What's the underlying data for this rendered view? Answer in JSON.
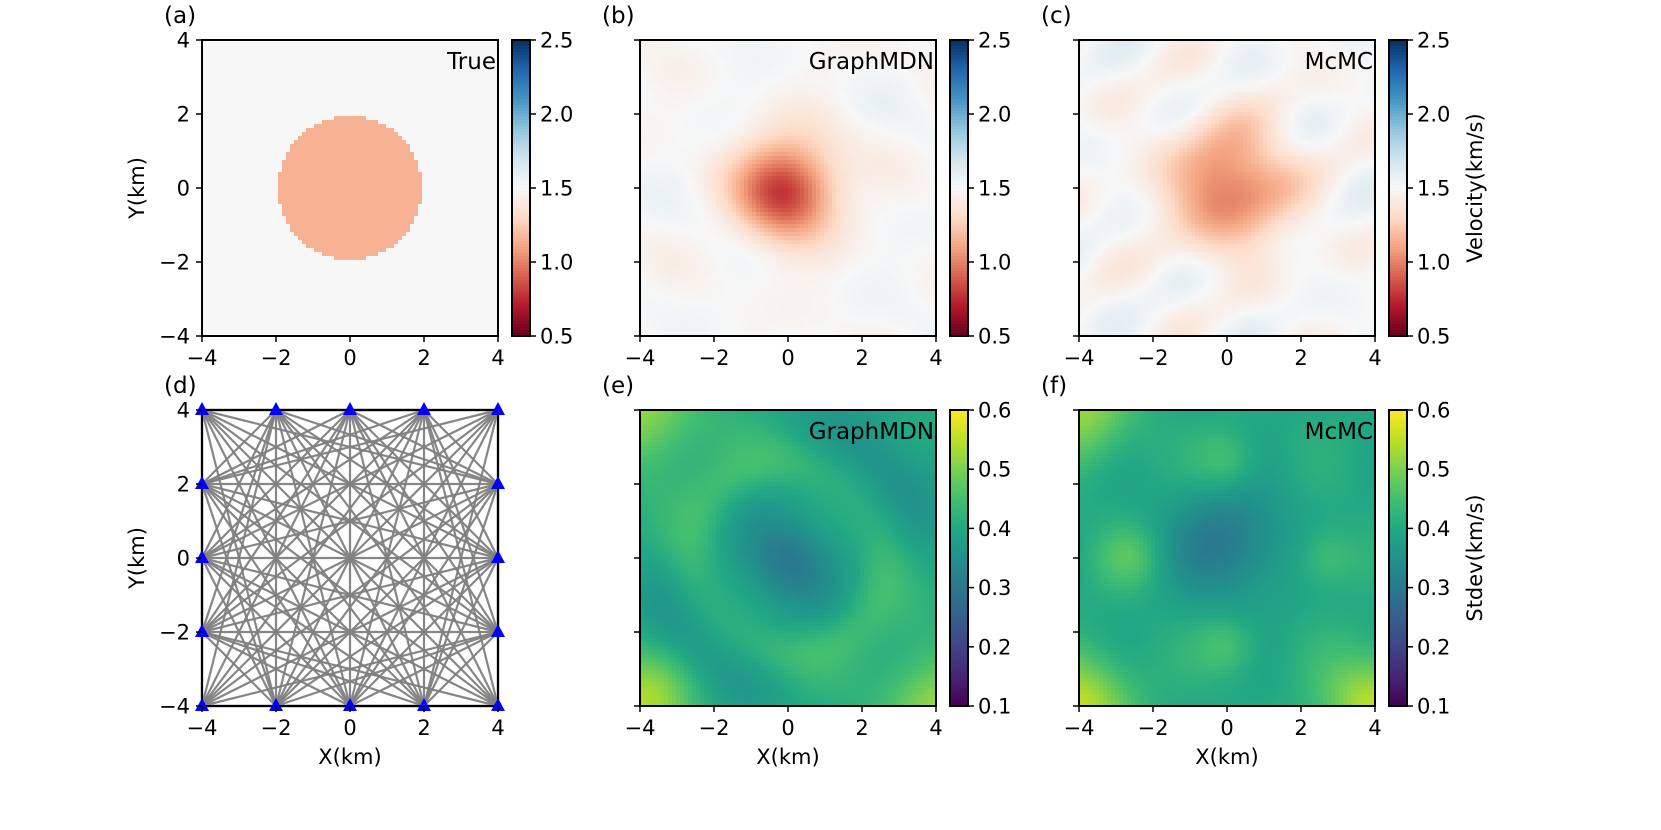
{
  "chart_data": [
    {
      "type": "heatmap",
      "panel": "(a)",
      "title": "True",
      "field": "true-disk",
      "xlim": [
        -4,
        4
      ],
      "ylim": [
        -4,
        4
      ],
      "xticks": [
        "−4",
        "−2",
        "0",
        "2",
        "4"
      ],
      "yticks": [
        "−4",
        "−2",
        "0",
        "2",
        "4"
      ],
      "ylabel": "Y(km)",
      "xlabel": "",
      "colorbar": {
        "ticks": [
          "0.5",
          "1.0",
          "1.5",
          "2.0",
          "2.5"
        ],
        "range": [
          0.5,
          2.5
        ],
        "cmap": "RdBu",
        "label": ""
      }
    },
    {
      "type": "heatmap",
      "panel": "(b)",
      "title": "GraphMDN",
      "field": "mean-graph",
      "xlim": [
        -4,
        4
      ],
      "ylim": [
        -4,
        4
      ],
      "xticks": [
        "−4",
        "−2",
        "0",
        "2",
        "4"
      ],
      "yticks": [],
      "ylabel": "",
      "xlabel": "",
      "colorbar": {
        "ticks": [
          "0.5",
          "1.0",
          "1.5",
          "2.0",
          "2.5"
        ],
        "range": [
          0.5,
          2.5
        ],
        "cmap": "RdBu",
        "label": ""
      }
    },
    {
      "type": "heatmap",
      "panel": "(c)",
      "title": "McMC",
      "field": "mean-mcmc",
      "xlim": [
        -4,
        4
      ],
      "ylim": [
        -4,
        4
      ],
      "xticks": [
        "−4",
        "−2",
        "0",
        "2",
        "4"
      ],
      "yticks": [],
      "ylabel": "",
      "xlabel": "",
      "colorbar": {
        "ticks": [
          "0.5",
          "1.0",
          "1.5",
          "2.0",
          "2.5"
        ],
        "range": [
          0.5,
          2.5
        ],
        "cmap": "RdBu",
        "label": "Velocity(km/s)"
      }
    },
    {
      "type": "scatter",
      "panel": "(d)",
      "title": "",
      "xlim": [
        -4,
        4
      ],
      "ylim": [
        -4,
        4
      ],
      "xticks": [
        "−4",
        "−2",
        "0",
        "2",
        "4"
      ],
      "yticks": [
        "−4",
        "−2",
        "0",
        "2",
        "4"
      ],
      "ylabel": "Y(km)",
      "xlabel": "X(km)",
      "stations": [
        [
          -4,
          4
        ],
        [
          -2,
          4
        ],
        [
          0,
          4
        ],
        [
          2,
          4
        ],
        [
          4,
          4
        ],
        [
          -4,
          2
        ],
        [
          4,
          2
        ],
        [
          -4,
          0
        ],
        [
          4,
          0
        ],
        [
          -4,
          -2
        ],
        [
          4,
          -2
        ],
        [
          -4,
          -4
        ],
        [
          -2,
          -4
        ],
        [
          0,
          -4
        ],
        [
          2,
          -4
        ],
        [
          4,
          -4
        ]
      ],
      "ray_color": "#808080",
      "station_color": "#0000ff"
    },
    {
      "type": "heatmap",
      "panel": "(e)",
      "title": "GraphMDN",
      "field": "std-graph",
      "xlim": [
        -4,
        4
      ],
      "ylim": [
        -4,
        4
      ],
      "xticks": [
        "−4",
        "−2",
        "0",
        "2",
        "4"
      ],
      "yticks": [],
      "ylabel": "",
      "xlabel": "X(km)",
      "colorbar": {
        "ticks": [
          "0.1",
          "0.2",
          "0.3",
          "0.4",
          "0.5",
          "0.6"
        ],
        "range": [
          0.1,
          0.6
        ],
        "cmap": "viridis",
        "label": ""
      }
    },
    {
      "type": "heatmap",
      "panel": "(f)",
      "title": "McMC",
      "field": "std-mcmc",
      "xlim": [
        -4,
        4
      ],
      "ylim": [
        -4,
        4
      ],
      "xticks": [
        "−4",
        "−2",
        "0",
        "2",
        "4"
      ],
      "yticks": [],
      "ylabel": "",
      "xlabel": "X(km)",
      "colorbar": {
        "ticks": [
          "0.1",
          "0.2",
          "0.3",
          "0.4",
          "0.5",
          "0.6"
        ],
        "range": [
          0.1,
          0.6
        ],
        "cmap": "viridis",
        "label": "Stdev(km/s)"
      }
    }
  ]
}
